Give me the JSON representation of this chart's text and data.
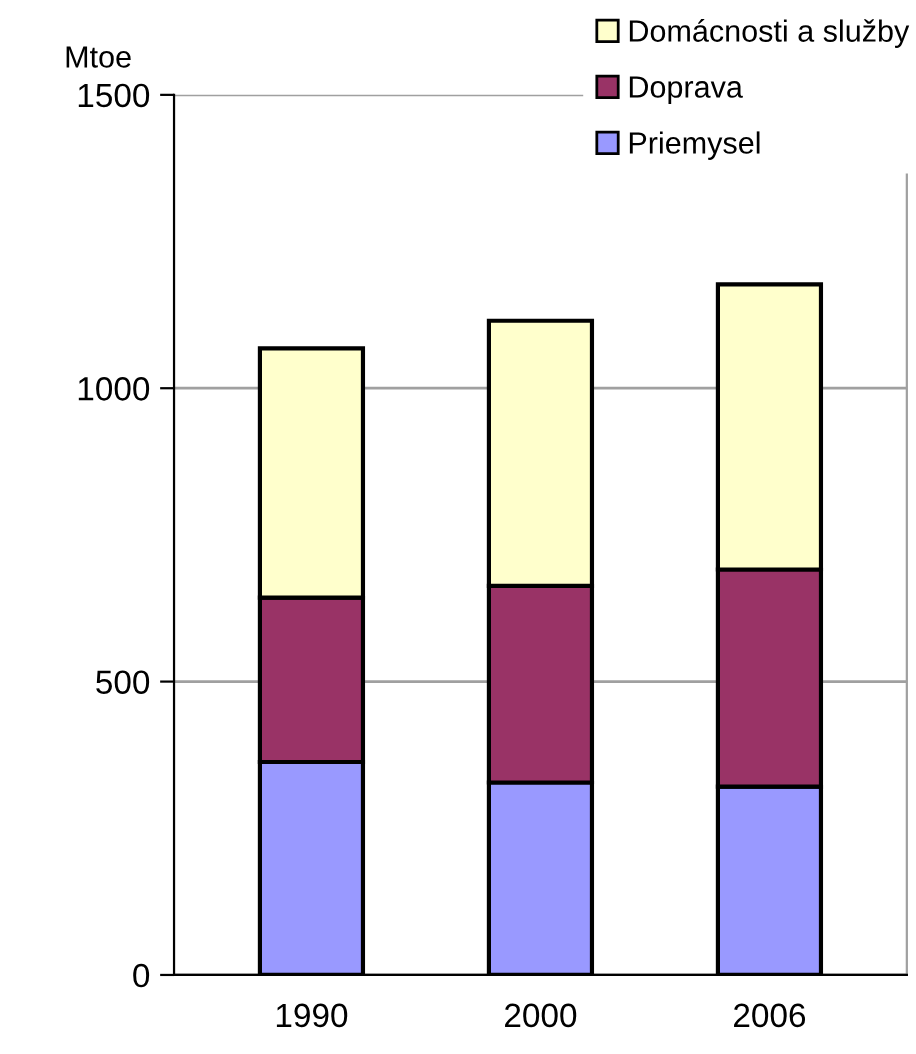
{
  "chart_data": {
    "type": "bar",
    "stacked": true,
    "ylabel": "Mtoe",
    "categories": [
      "1990",
      "2000",
      "2006"
    ],
    "series": [
      {
        "name": "Priemysel",
        "color": "#9999ff",
        "values": [
          363,
          328,
          321
        ]
      },
      {
        "name": "Doprava",
        "color": "#993366",
        "values": [
          280,
          335,
          370
        ]
      },
      {
        "name": "Domácnosti a služby",
        "color": "#ffffcc",
        "values": [
          425,
          452,
          486
        ]
      }
    ],
    "ylim": [
      0,
      1500
    ],
    "yticks": [
      0,
      500,
      1000,
      1500
    ],
    "grid": "y",
    "legend": "top right"
  }
}
